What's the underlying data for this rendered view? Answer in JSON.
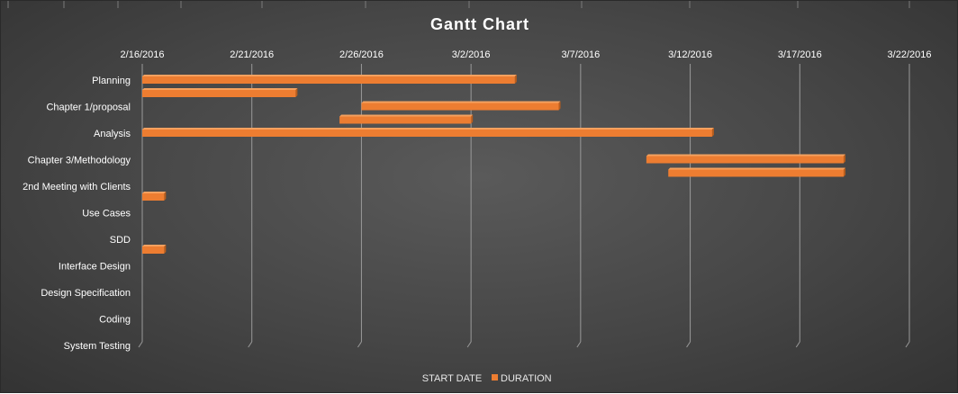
{
  "colors": {
    "bar": "#ed7d31",
    "bar_top": "#f4a15f",
    "bar_side": "#b85d1d",
    "grid": "#9a9a9a",
    "text": "#ffffff"
  },
  "chart_data": {
    "type": "bar",
    "orientation": "horizontal",
    "title": "Gantt Chart",
    "xlabel": "",
    "ylabel": "",
    "x_ticks": [
      "2/16/2016",
      "2/21/2016",
      "2/26/2016",
      "3/2/2016",
      "3/7/2016",
      "3/12/2016",
      "3/17/2016",
      "3/22/2016"
    ],
    "xlim": [
      "2016-02-16",
      "2016-03-22"
    ],
    "grid": true,
    "legend_position": "bottom",
    "categories": [
      "Planning",
      "Chapter 1/proposal",
      "Analysis",
      "Chapter 3/Methodology",
      "2nd Meeting with Clients",
      "Use Cases",
      "SDD",
      "Interface Design",
      "Design Specification",
      "Coding",
      "System Testing"
    ],
    "series": [
      {
        "name": "START DATE",
        "values": [
          "2016-02-16",
          "2016-02-26",
          "2016-02-16",
          "2016-03-10",
          "2016-02-16",
          null,
          "2016-02-16",
          null,
          null,
          null,
          null
        ]
      },
      {
        "name": "DURATION",
        "bars": [
          {
            "category": "Planning",
            "start": "2016-02-16",
            "end": "2016-03-04"
          },
          {
            "category": "Planning",
            "start": "2016-02-16",
            "end": "2016-02-23"
          },
          {
            "category": "Chapter 1/proposal",
            "start": "2016-02-26",
            "end": "2016-03-06"
          },
          {
            "category": "Chapter 1/proposal",
            "start": "2016-02-25",
            "end": "2016-03-02"
          },
          {
            "category": "Analysis",
            "start": "2016-02-16",
            "end": "2016-03-13"
          },
          {
            "category": "Chapter 3/Methodology",
            "start": "2016-03-10",
            "end": "2016-03-19"
          },
          {
            "category": "Chapter 3/Methodology",
            "start": "2016-03-11",
            "end": "2016-03-19"
          },
          {
            "category": "2nd Meeting with Clients",
            "start": "2016-02-16",
            "end": "2016-02-17"
          },
          {
            "category": "SDD",
            "start": "2016-02-16",
            "end": "2016-02-17"
          }
        ]
      }
    ]
  }
}
